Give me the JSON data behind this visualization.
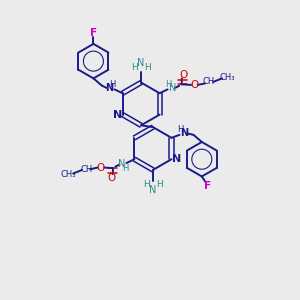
{
  "background_color": "#ebebeb",
  "bond_color": "#1a1a8c",
  "N_color": "#1a1a8c",
  "O_color": "#cc0000",
  "F_color": "#cc00cc",
  "NH2_color": "#2e8b8b",
  "figsize": [
    3.0,
    3.0
  ],
  "dpi": 100,
  "xlim": [
    0,
    10
  ],
  "ylim": [
    0,
    10
  ]
}
